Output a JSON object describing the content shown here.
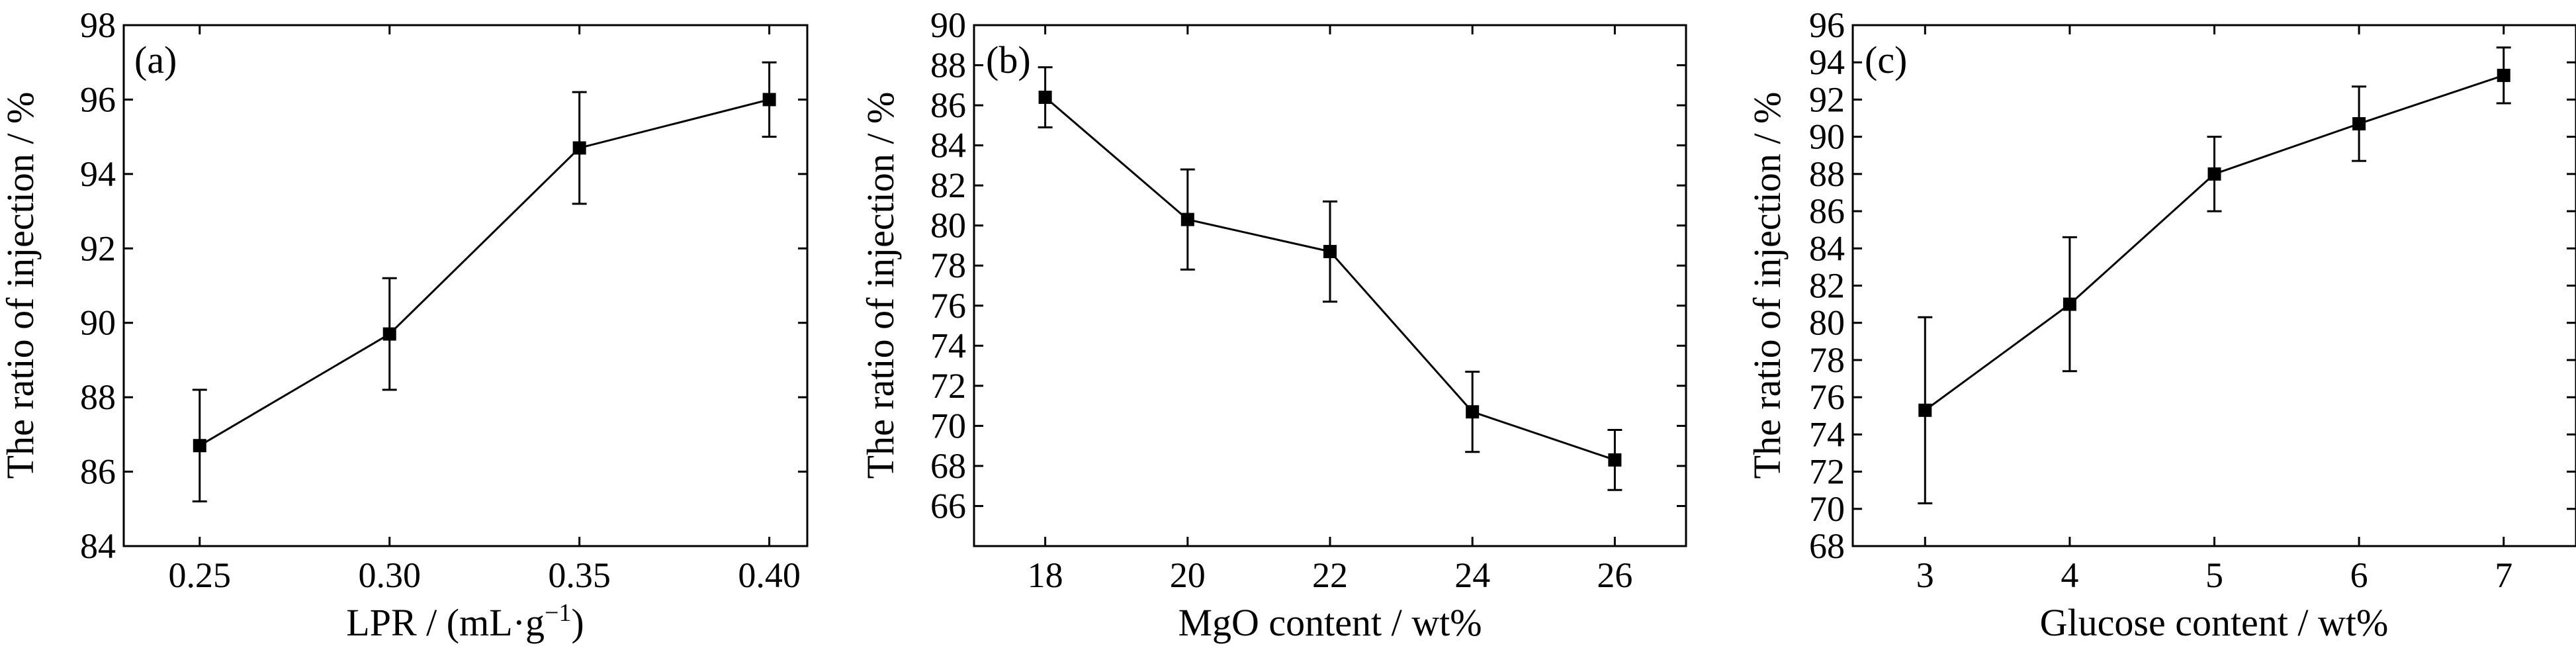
{
  "chart_data": [
    {
      "type": "line",
      "panel_label": "(a)",
      "xlabel": "LPR / (mL·g⁻¹)",
      "ylabel": "The ratio of injection / %",
      "x": [
        0.25,
        0.3,
        0.35,
        0.4
      ],
      "x_tick_labels": [
        "0.25",
        "0.30",
        "0.35",
        "0.40"
      ],
      "xlim": [
        0.23,
        0.41
      ],
      "ylim": [
        84,
        98
      ],
      "y_ticks": [
        84,
        86,
        88,
        90,
        92,
        94,
        96,
        98
      ],
      "series": [
        {
          "values": [
            86.7,
            89.7,
            94.7,
            96.0
          ],
          "errors": [
            1.5,
            1.5,
            1.5,
            1.0
          ]
        }
      ]
    },
    {
      "type": "line",
      "panel_label": "(b)",
      "xlabel": "MgO content / wt%",
      "ylabel": "The ratio of injection / %",
      "x": [
        18,
        20,
        22,
        24,
        26
      ],
      "x_tick_labels": [
        "18",
        "20",
        "22",
        "24",
        "26"
      ],
      "xlim": [
        17,
        27
      ],
      "ylim": [
        64,
        90
      ],
      "y_ticks": [
        66,
        68,
        70,
        72,
        74,
        76,
        78,
        80,
        82,
        84,
        86,
        88,
        90
      ],
      "series": [
        {
          "values": [
            86.4,
            80.3,
            78.7,
            70.7,
            68.3
          ],
          "errors": [
            1.5,
            2.5,
            2.5,
            2.0,
            1.5
          ]
        }
      ]
    },
    {
      "type": "line",
      "panel_label": "(c)",
      "xlabel": "Glucose content / wt%",
      "ylabel": "The ratio of injection / %",
      "x": [
        3,
        4,
        5,
        6,
        7
      ],
      "x_tick_labels": [
        "3",
        "4",
        "5",
        "6",
        "7"
      ],
      "xlim": [
        2.5,
        7.5
      ],
      "ylim": [
        68,
        96
      ],
      "y_ticks": [
        68,
        70,
        72,
        74,
        76,
        78,
        80,
        82,
        84,
        86,
        88,
        90,
        92,
        94,
        96
      ],
      "series": [
        {
          "values": [
            75.3,
            81.0,
            88.0,
            90.7,
            93.3
          ],
          "errors": [
            5.0,
            3.6,
            2.0,
            2.0,
            1.5
          ]
        }
      ]
    }
  ]
}
